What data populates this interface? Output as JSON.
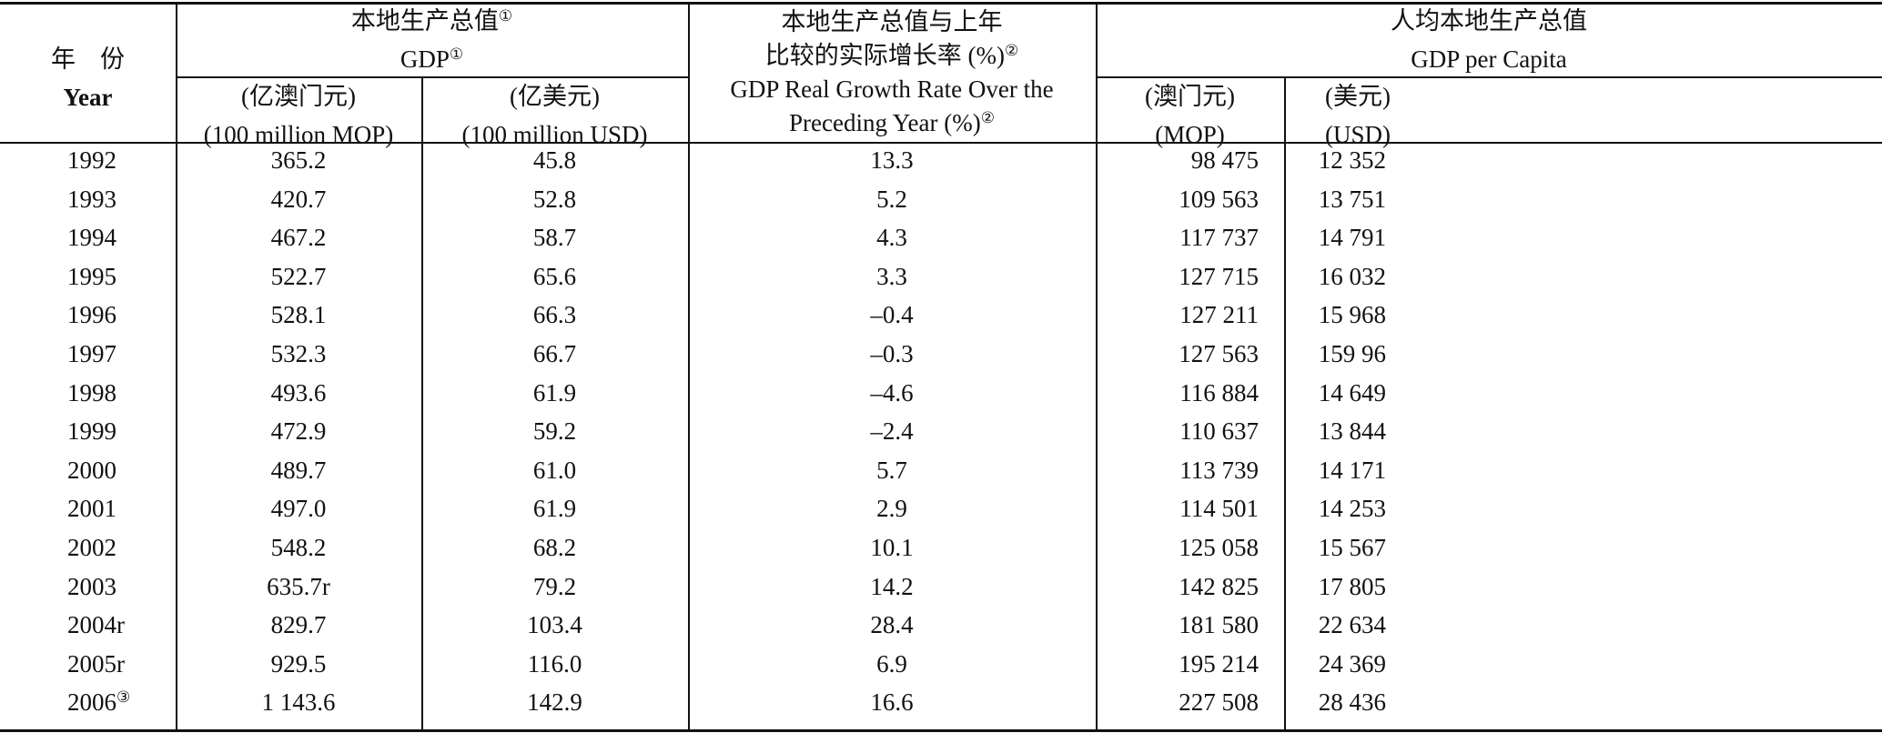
{
  "header": {
    "year_zh": "年　份",
    "year_en": "Year",
    "gdp_zh": "本地生产总值",
    "gdp_en": "GDP",
    "gdp_note": "①",
    "gdp_mop_zh": "(亿澳门元)",
    "gdp_mop_en": "(100 million MOP)",
    "gdp_usd_zh": "(亿美元)",
    "gdp_usd_en": "(100 million USD)",
    "growth_zh_1": "本地生产总值与上年",
    "growth_zh_2": "比较的实际增长率 (%)",
    "growth_en_1": "GDP Real Growth Rate Over the",
    "growth_en_2": "Preceding Year (%)",
    "growth_note": "②",
    "pc_zh": "人均本地生产总值",
    "pc_en": "GDP per Capita",
    "pc_mop_zh": "(澳门元)",
    "pc_mop_en": "(MOP)",
    "pc_usd_zh": "(美元)",
    "pc_usd_en": "(USD)"
  },
  "rows": [
    {
      "year": "1992",
      "year_note": "",
      "gdp_mop": "365.2",
      "gdp_usd": "45.8",
      "growth": "13.3",
      "pc_mop": "98 475",
      "pc_usd": "12 352"
    },
    {
      "year": "1993",
      "year_note": "",
      "gdp_mop": "420.7",
      "gdp_usd": "52.8",
      "growth": "5.2",
      "pc_mop": "109 563",
      "pc_usd": "13 751"
    },
    {
      "year": "1994",
      "year_note": "",
      "gdp_mop": "467.2",
      "gdp_usd": "58.7",
      "growth": "4.3",
      "pc_mop": "117 737",
      "pc_usd": "14 791"
    },
    {
      "year": "1995",
      "year_note": "",
      "gdp_mop": "522.7",
      "gdp_usd": "65.6",
      "growth": "3.3",
      "pc_mop": "127 715",
      "pc_usd": "16 032"
    },
    {
      "year": "1996",
      "year_note": "",
      "gdp_mop": "528.1",
      "gdp_usd": "66.3",
      "growth": "–0.4",
      "pc_mop": "127 211",
      "pc_usd": "15 968"
    },
    {
      "year": "1997",
      "year_note": "",
      "gdp_mop": "532.3",
      "gdp_usd": "66.7",
      "growth": "–0.3",
      "pc_mop": "127 563",
      "pc_usd": "159 96"
    },
    {
      "year": "1998",
      "year_note": "",
      "gdp_mop": "493.6",
      "gdp_usd": "61.9",
      "growth": "–4.6",
      "pc_mop": "116 884",
      "pc_usd": "14 649"
    },
    {
      "year": "1999",
      "year_note": "",
      "gdp_mop": "472.9",
      "gdp_usd": "59.2",
      "growth": "–2.4",
      "pc_mop": "110 637",
      "pc_usd": "13 844"
    },
    {
      "year": "2000",
      "year_note": "",
      "gdp_mop": "489.7",
      "gdp_usd": "61.0",
      "growth": "5.7",
      "pc_mop": "113 739",
      "pc_usd": "14 171"
    },
    {
      "year": "2001",
      "year_note": "",
      "gdp_mop": "497.0",
      "gdp_usd": "61.9",
      "growth": "2.9",
      "pc_mop": "114 501",
      "pc_usd": "14 253"
    },
    {
      "year": "2002",
      "year_note": "",
      "gdp_mop": "548.2",
      "gdp_usd": "68.2",
      "growth": "10.1",
      "pc_mop": "125 058",
      "pc_usd": "15 567"
    },
    {
      "year": "2003",
      "year_note": "",
      "gdp_mop": "635.7r",
      "gdp_usd": "79.2",
      "growth": "14.2",
      "pc_mop": "142 825",
      "pc_usd": "17 805"
    },
    {
      "year": "2004r",
      "year_note": "",
      "gdp_mop": "829.7",
      "gdp_usd": "103.4",
      "growth": "28.4",
      "pc_mop": "181 580",
      "pc_usd": "22 634"
    },
    {
      "year": "2005r",
      "year_note": "",
      "gdp_mop": "929.5",
      "gdp_usd": "116.0",
      "growth": "6.9",
      "pc_mop": "195 214",
      "pc_usd": "24 369"
    },
    {
      "year": "2006",
      "year_note": "③",
      "gdp_mop": "1 143.6",
      "gdp_usd": "142.9",
      "growth": "16.6",
      "pc_mop": "227 508",
      "pc_usd": "28 436"
    }
  ]
}
